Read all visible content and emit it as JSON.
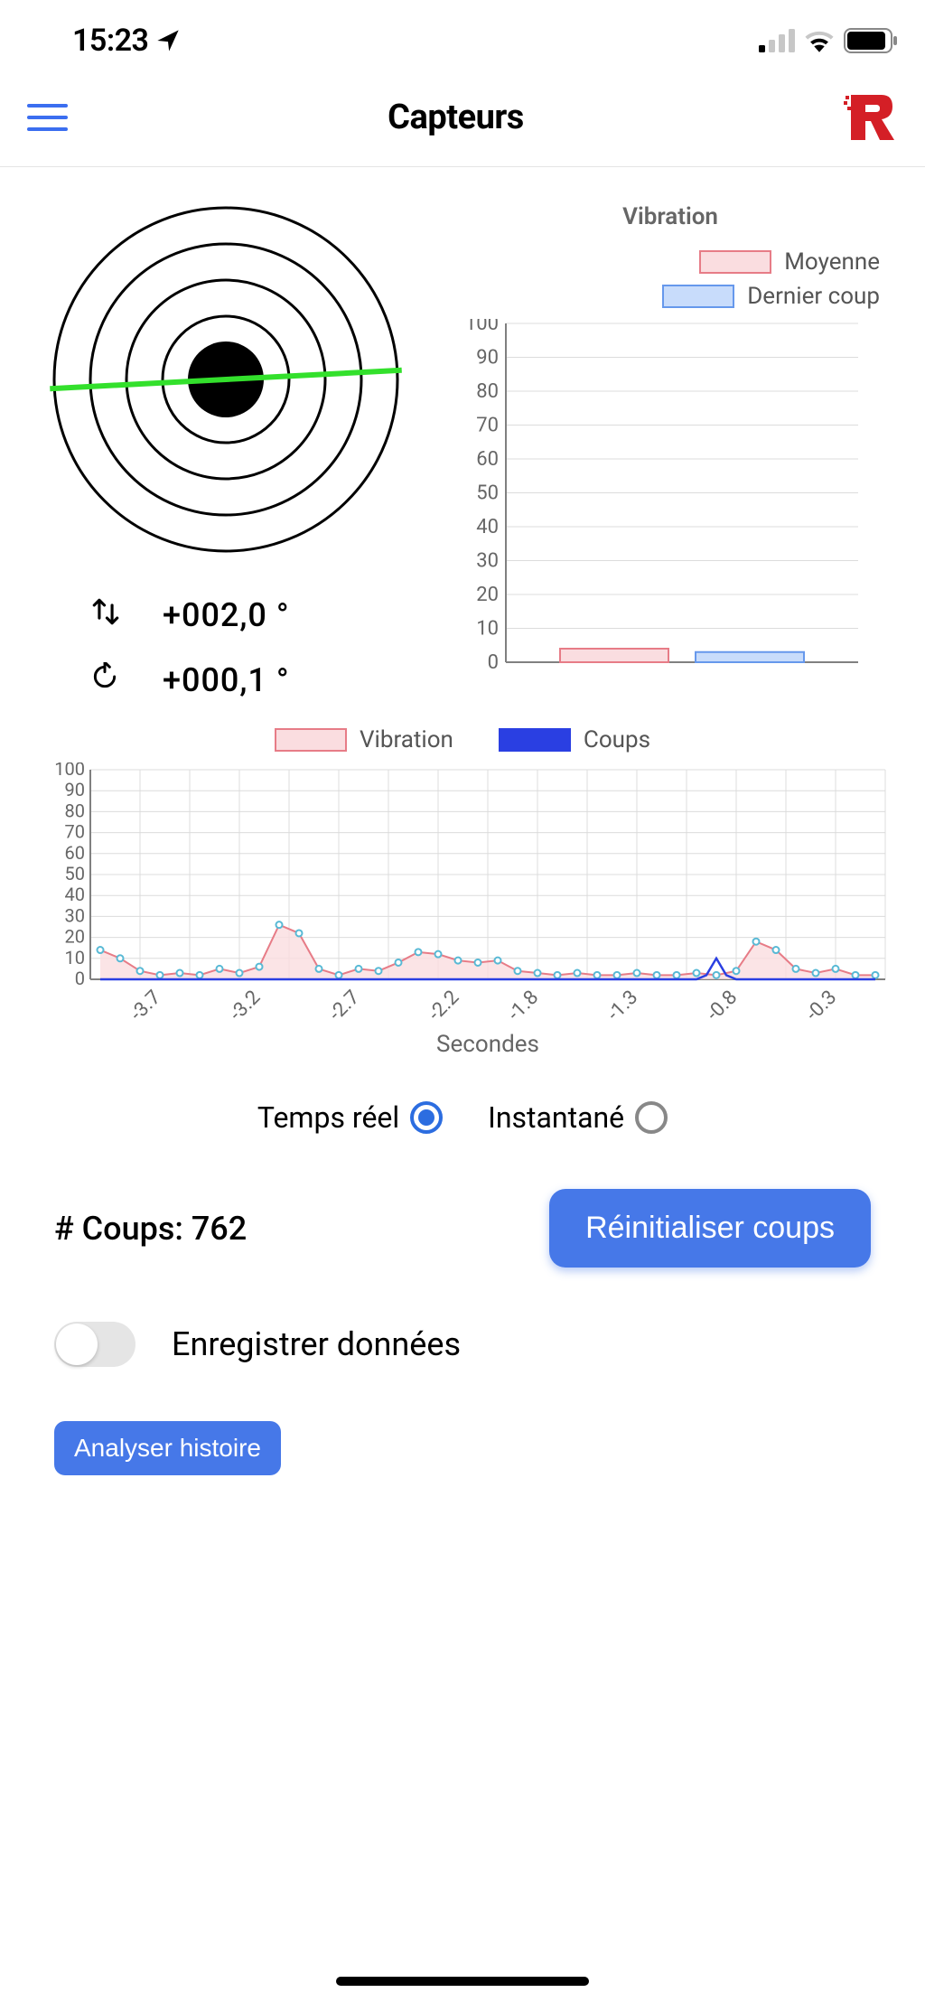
{
  "status_bar": {
    "time": "15:23",
    "location_icon": true,
    "signal_bars": 1,
    "wifi": true,
    "battery_pct": 85
  },
  "header": {
    "title": "Capteurs"
  },
  "target": {
    "rings": 4,
    "ring_stroke": "#000000",
    "dot_color": "#000000",
    "level_line_color": "#33e02c",
    "level_tilt_deg": -3
  },
  "readings": {
    "tilt": {
      "value": "+002,0 °"
    },
    "rotation": {
      "value": "+000,1 °"
    }
  },
  "vibration_chart": {
    "title": "Vibration",
    "legend": [
      {
        "label": "Moyenne",
        "fill": "#fadde0",
        "stroke": "#e77c87"
      },
      {
        "label": "Dernier coup",
        "fill": "#c8dcfb",
        "stroke": "#6698ec"
      }
    ],
    "y_axis": {
      "min": 0,
      "max": 100,
      "step": 10
    },
    "bars": [
      {
        "series": 0,
        "value": 4
      },
      {
        "series": 1,
        "value": 3
      }
    ],
    "grid_color": "#dcdcdc",
    "axis_color": "#808080",
    "tick_font_size": 22
  },
  "line_chart": {
    "legend": [
      {
        "label": "Vibration",
        "fill": "#fadde0",
        "stroke": "#e77c87",
        "marker_stroke": "#58b9d5"
      },
      {
        "label": "Coups",
        "fill": "#2a3fe2",
        "stroke": "#2a3fe2"
      }
    ],
    "y_axis": {
      "min": 0,
      "max": 100,
      "step": 10,
      "tight_step": true
    },
    "x_axis": {
      "label": "Secondes",
      "ticks": [
        "-3.7",
        "-3.2",
        "-2.7",
        "-2.2",
        "-1.8",
        "-1.3",
        "-0.8",
        "-0.3"
      ],
      "min": -4.0,
      "max": 0.0
    },
    "vibration_series": [
      [
        -3.95,
        14
      ],
      [
        -3.85,
        10
      ],
      [
        -3.75,
        4
      ],
      [
        -3.65,
        2
      ],
      [
        -3.55,
        3
      ],
      [
        -3.45,
        2
      ],
      [
        -3.35,
        5
      ],
      [
        -3.25,
        3
      ],
      [
        -3.15,
        6
      ],
      [
        -3.05,
        26
      ],
      [
        -2.95,
        22
      ],
      [
        -2.85,
        5
      ],
      [
        -2.75,
        2
      ],
      [
        -2.65,
        5
      ],
      [
        -2.55,
        4
      ],
      [
        -2.45,
        8
      ],
      [
        -2.35,
        13
      ],
      [
        -2.25,
        12
      ],
      [
        -2.15,
        9
      ],
      [
        -2.05,
        8
      ],
      [
        -1.95,
        9
      ],
      [
        -1.85,
        4
      ],
      [
        -1.75,
        3
      ],
      [
        -1.65,
        2
      ],
      [
        -1.55,
        3
      ],
      [
        -1.45,
        2
      ],
      [
        -1.35,
        2
      ],
      [
        -1.25,
        3
      ],
      [
        -1.15,
        2
      ],
      [
        -1.05,
        2
      ],
      [
        -0.95,
        3
      ],
      [
        -0.85,
        2
      ],
      [
        -0.75,
        4
      ],
      [
        -0.65,
        18
      ],
      [
        -0.55,
        14
      ],
      [
        -0.45,
        5
      ],
      [
        -0.35,
        3
      ],
      [
        -0.25,
        5
      ],
      [
        -0.15,
        2
      ],
      [
        -0.05,
        2
      ]
    ],
    "coups_series": [
      [
        -3.95,
        0
      ],
      [
        -3.05,
        0
      ],
      [
        -2.95,
        0
      ],
      [
        -1.05,
        0
      ],
      [
        -0.95,
        0
      ],
      [
        -0.9,
        2
      ],
      [
        -0.85,
        10
      ],
      [
        -0.8,
        2
      ],
      [
        -0.75,
        0
      ],
      [
        -0.05,
        0
      ]
    ],
    "grid_color": "#dcdcdc",
    "axis_color": "#808080",
    "tick_font_size": 20
  },
  "mode": {
    "options": [
      "Temps réel",
      "Instantané"
    ],
    "selected_index": 0,
    "accent": "#2c6de0"
  },
  "coups": {
    "label_prefix": "# Coups: ",
    "count": 762,
    "reset_label": "Réinitialiser coups"
  },
  "record": {
    "label": "Enregistrer données",
    "enabled": false
  },
  "analyze": {
    "label": "Analyser histoire"
  },
  "colors": {
    "primary": "#4678e8",
    "hamburger": "#3b6ef0",
    "logo_red": "#d41f26"
  }
}
